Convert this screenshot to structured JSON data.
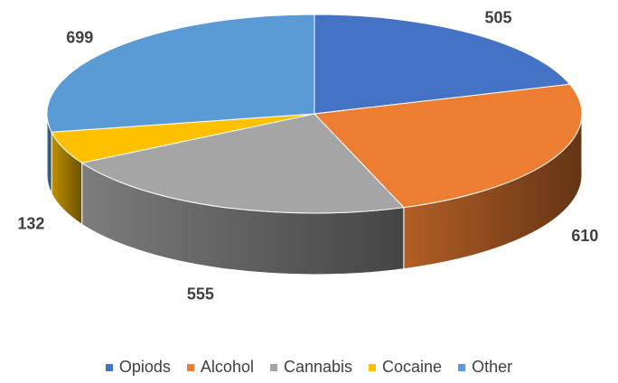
{
  "chart_data": {
    "type": "pie",
    "title": "",
    "categories": [
      "Opiods",
      "Alcohol",
      "Cannabis",
      "Cocaine",
      "Other"
    ],
    "values": [
      505,
      610,
      555,
      132,
      699
    ],
    "colors": [
      "#4472c4",
      "#ed7d31",
      "#a5a5a5",
      "#ffc000",
      "#5b9bd5"
    ],
    "legend_position": "bottom",
    "style": "3d"
  }
}
